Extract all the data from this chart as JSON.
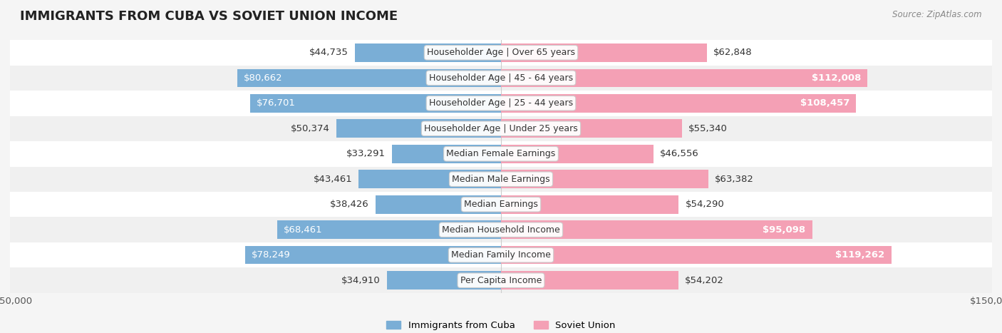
{
  "title": "IMMIGRANTS FROM CUBA VS SOVIET UNION INCOME",
  "source": "Source: ZipAtlas.com",
  "categories": [
    "Per Capita Income",
    "Median Family Income",
    "Median Household Income",
    "Median Earnings",
    "Median Male Earnings",
    "Median Female Earnings",
    "Householder Age | Under 25 years",
    "Householder Age | 25 - 44 years",
    "Householder Age | 45 - 64 years",
    "Householder Age | Over 65 years"
  ],
  "cuba_values": [
    34910,
    78249,
    68461,
    38426,
    43461,
    33291,
    50374,
    76701,
    80662,
    44735
  ],
  "soviet_values": [
    54202,
    119262,
    95098,
    54290,
    63382,
    46556,
    55340,
    108457,
    112008,
    62848
  ],
  "cuba_color": "#7aaed6",
  "soviet_color": "#f4a0b5",
  "cuba_color_dark": "#5b8fbd",
  "soviet_color_dark": "#e0607e",
  "max_val": 150000,
  "bg_color": "#f5f5f5",
  "row_bg": "#ffffff",
  "label_font_size": 9.5,
  "title_font_size": 13,
  "legend_font_size": 9.5
}
